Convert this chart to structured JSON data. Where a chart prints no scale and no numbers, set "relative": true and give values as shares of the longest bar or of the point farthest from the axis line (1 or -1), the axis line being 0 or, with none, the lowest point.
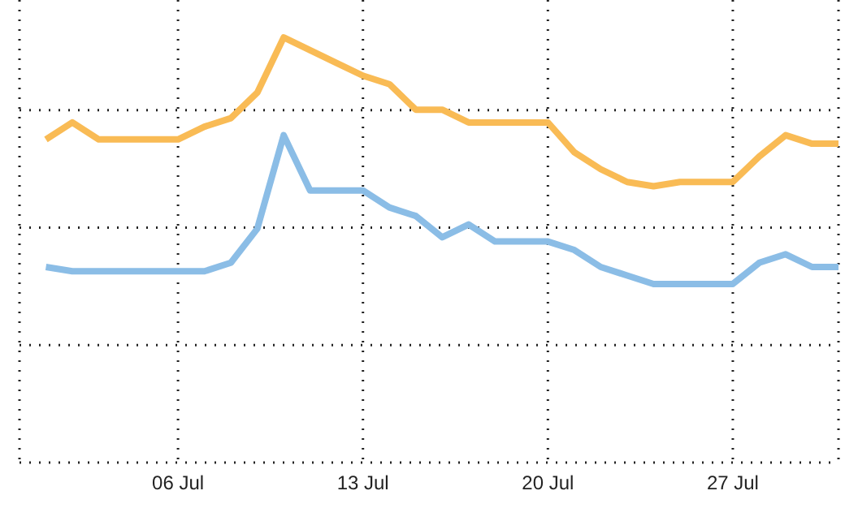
{
  "chart_data": {
    "type": "line",
    "relative": true,
    "grid": true,
    "legend": false,
    "marker": "none",
    "line_style": "solid",
    "x": [
      "--07-01",
      "--07-02",
      "--07-03",
      "--07-04",
      "--07-05",
      "--07-06",
      "--07-07",
      "--07-08",
      "--07-09",
      "--07-10",
      "--07-11",
      "--07-12",
      "--07-13",
      "--07-14",
      "--07-15",
      "--07-16",
      "--07-17",
      "--07-18",
      "--07-19",
      "--07-20",
      "--07-21",
      "--07-22",
      "--07-23",
      "--07-24",
      "--07-25",
      "--07-26",
      "--07-27",
      "--07-28",
      "--07-29",
      "--07-30",
      "--07-31"
    ],
    "xlim": [
      "--06-30",
      "--07-31"
    ],
    "xticks": [
      {
        "value": "--07-06",
        "label": "06 Jul"
      },
      {
        "value": "--07-13",
        "label": "13 Jul"
      },
      {
        "value": "--07-20",
        "label": "20 Jul"
      },
      {
        "value": "--07-27",
        "label": "27 Jul"
      }
    ],
    "series": [
      {
        "color": "#f9bb55",
        "values": [
          0.76,
          0.8,
          0.76,
          0.76,
          0.76,
          0.76,
          0.79,
          0.81,
          0.87,
          1,
          0.97,
          0.94,
          0.91,
          0.89,
          0.83,
          0.83,
          0.8,
          0.8,
          0.8,
          0.8,
          0.73,
          0.69,
          0.66,
          0.65,
          0.66,
          0.66,
          0.66,
          0.72,
          0.77,
          0.75,
          0.75
        ]
      },
      {
        "color": "#8bbde6",
        "values": [
          0.46,
          0.45,
          0.45,
          0.45,
          0.45,
          0.45,
          0.45,
          0.47,
          0.55,
          0.77,
          0.64,
          0.64,
          0.64,
          0.6,
          0.58,
          0.53,
          0.56,
          0.52,
          0.52,
          0.52,
          0.5,
          0.46,
          0.44,
          0.42,
          0.42,
          0.42,
          0.42,
          0.47,
          0.49,
          0.46,
          0.46
        ]
      }
    ]
  }
}
